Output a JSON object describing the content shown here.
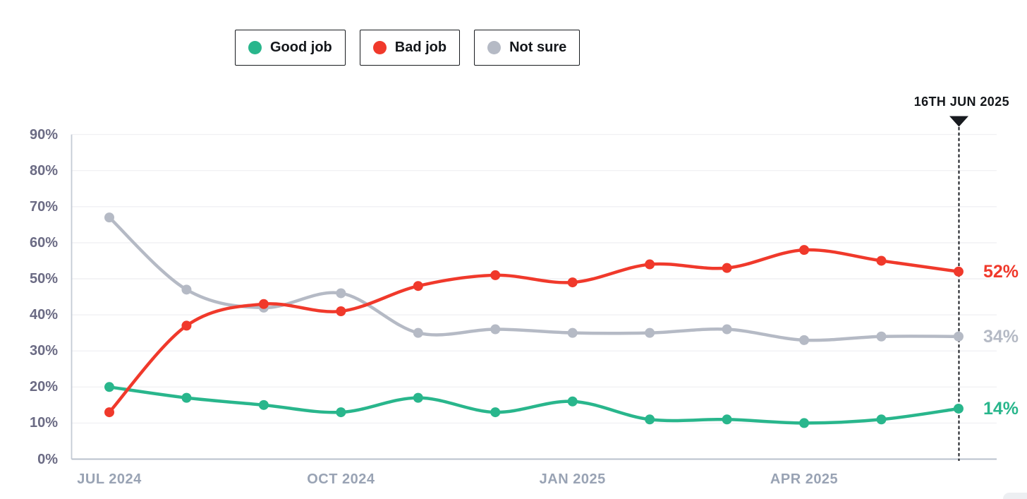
{
  "legend": {
    "items": [
      {
        "id": "good-job",
        "label": "Good job",
        "color": "#29b68c"
      },
      {
        "id": "bad-job",
        "label": "Bad job",
        "color": "#f0392b"
      },
      {
        "id": "not-sure",
        "label": "Not sure",
        "color": "#b5bac5"
      }
    ]
  },
  "annotation": {
    "label": "16TH JUN 2025"
  },
  "chart_data": {
    "type": "line",
    "title": "",
    "xlabel": "",
    "ylabel": "",
    "x": [
      "Jul 2024",
      "Aug 2024",
      "Sep 2024",
      "Oct 2024",
      "Nov 2024",
      "Dec 2024",
      "Jan 2025",
      "Feb 2025",
      "Mar 2025",
      "Apr 2025",
      "May 2025",
      "Jun 2025"
    ],
    "x_tick_labels": [
      "JUL 2024",
      "OCT 2024",
      "JAN 2025",
      "APR 2025"
    ],
    "x_tick_indices": [
      0,
      3,
      6,
      9
    ],
    "y_ticks": [
      "0%",
      "10%",
      "20%",
      "30%",
      "40%",
      "50%",
      "60%",
      "70%",
      "80%",
      "90%"
    ],
    "ylim": [
      0,
      90
    ],
    "grid": "horizontal",
    "legend_position": "top",
    "smoothed": true,
    "series": [
      {
        "name": "Not sure",
        "color": "#b5bac5",
        "values": [
          67,
          47,
          42,
          46,
          35,
          36,
          35,
          35,
          36,
          33,
          34,
          34
        ],
        "end_label": "34%"
      },
      {
        "name": "Good job",
        "color": "#29b68c",
        "values": [
          20,
          17,
          15,
          13,
          17,
          13,
          16,
          11,
          11,
          10,
          11,
          14
        ],
        "end_label": "14%"
      },
      {
        "name": "Bad job",
        "color": "#f0392b",
        "values": [
          13,
          37,
          43,
          41,
          48,
          51,
          49,
          54,
          53,
          58,
          55,
          52
        ],
        "end_label": "52%"
      }
    ],
    "annotation_marker": {
      "label": "16TH JUN 2025",
      "x": "Jun 2025"
    }
  }
}
